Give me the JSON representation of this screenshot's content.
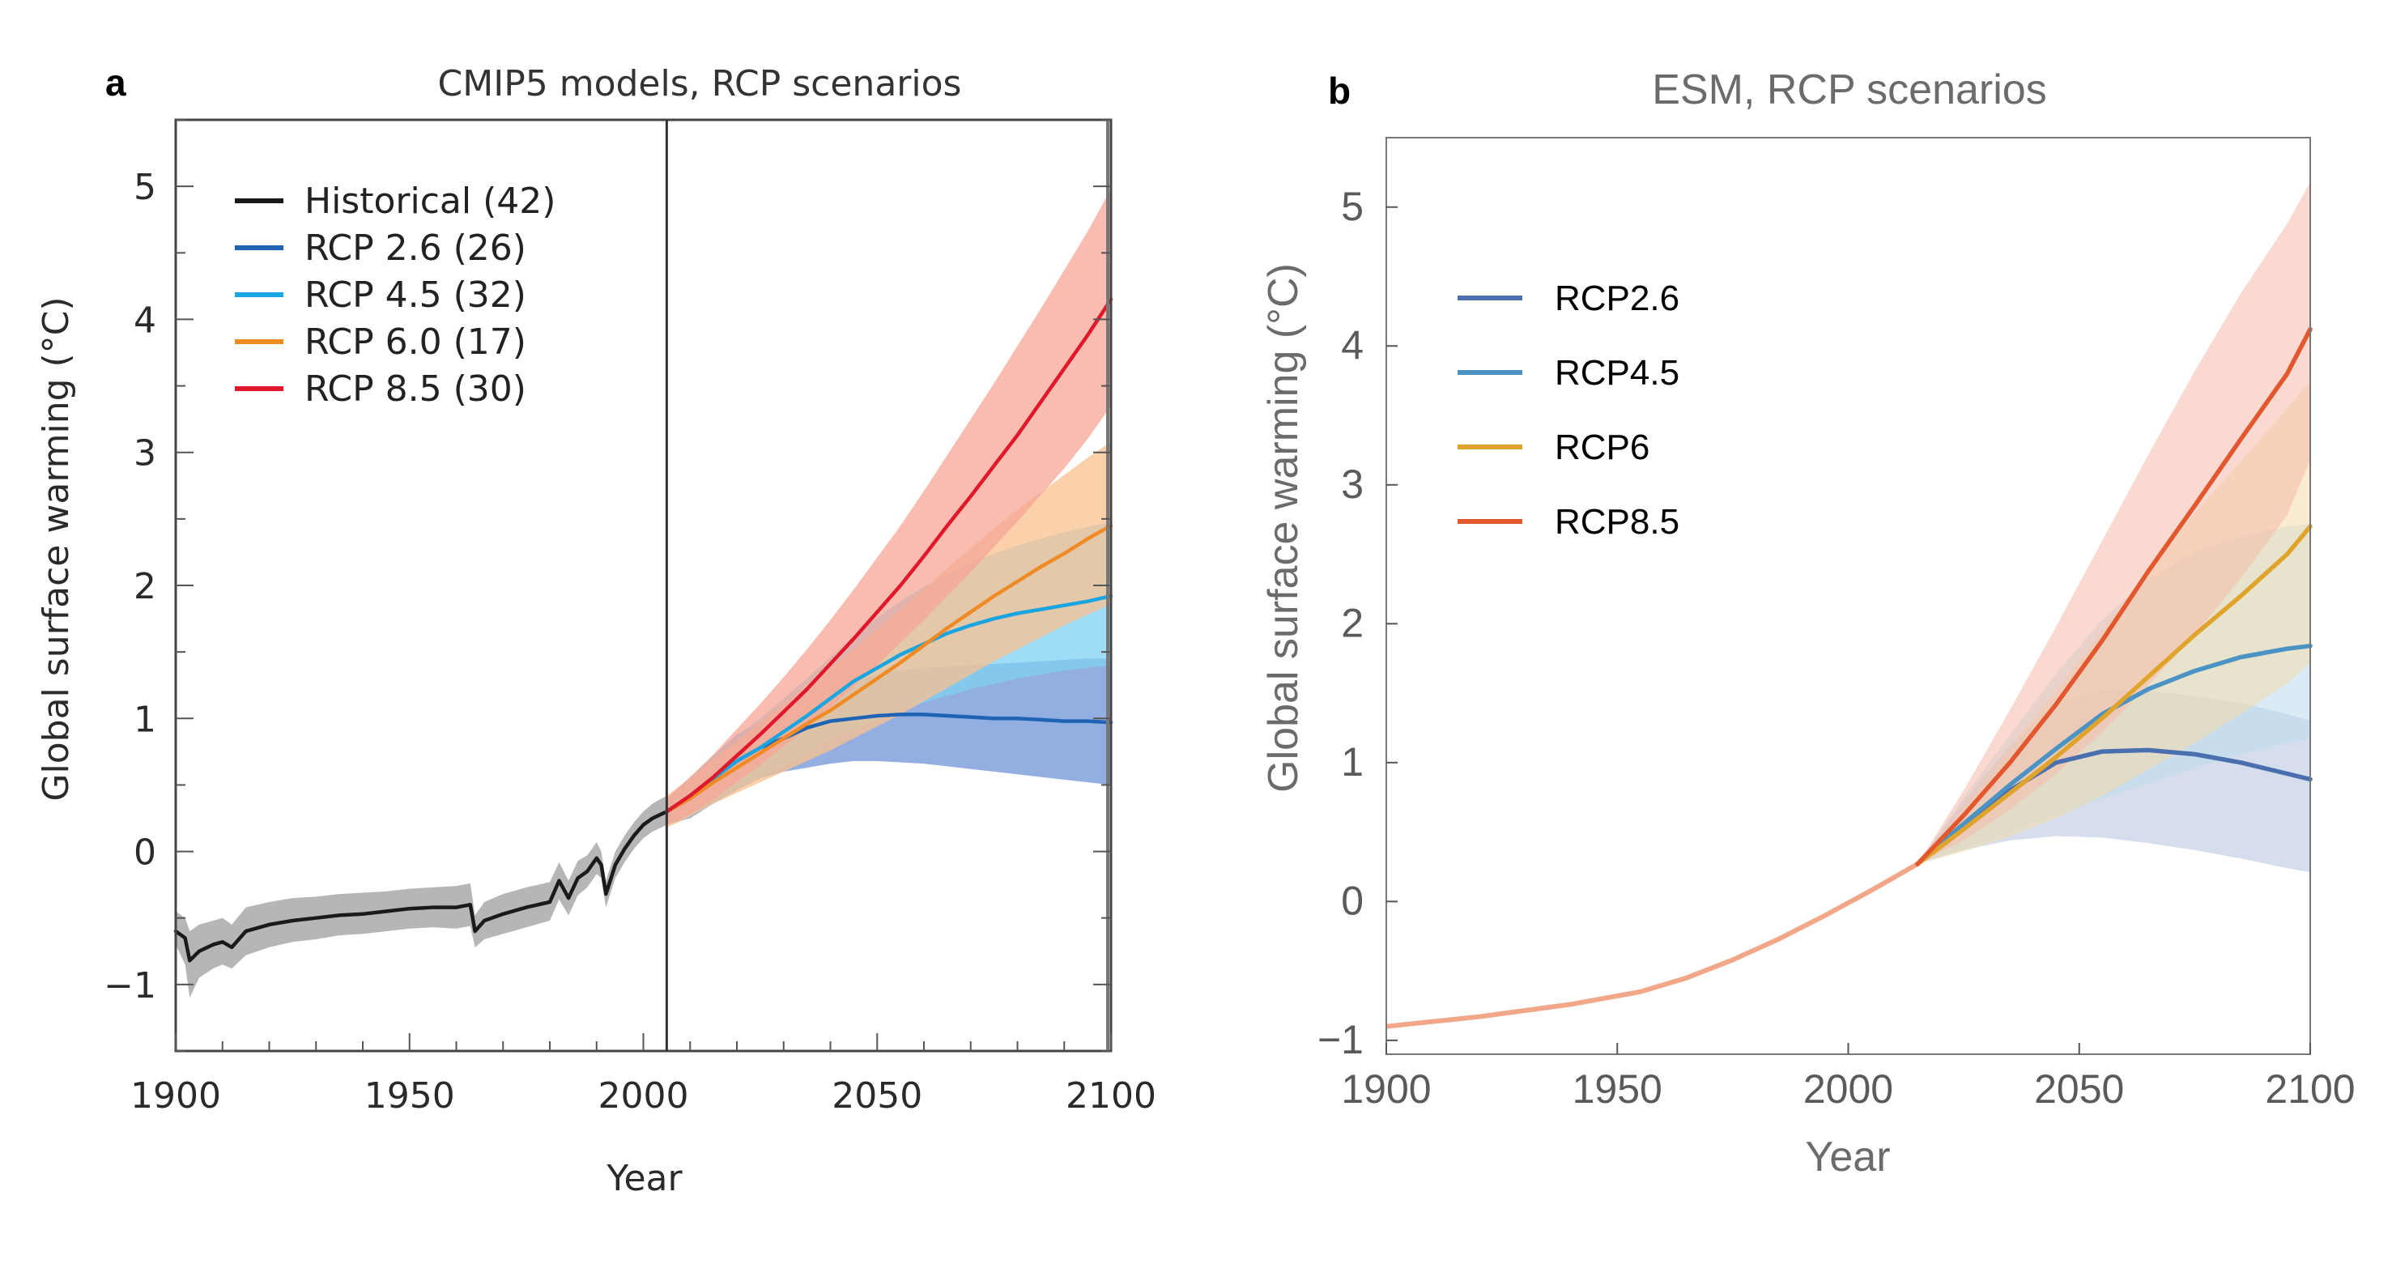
{
  "chart_data": [
    {
      "panel": "a",
      "type": "line",
      "title": "CMIP5 models, RCP scenarios",
      "xlabel": "Year",
      "ylabel": "Global surface warming (°C)",
      "xlim": [
        1900,
        2100
      ],
      "ylim": [
        -1.5,
        5.5
      ],
      "xticks": [
        1900,
        1950,
        2000,
        2050,
        2100
      ],
      "yticks": [
        -1,
        0,
        1,
        2,
        3,
        4,
        5
      ],
      "vertical_line_x": 2005,
      "grid": false,
      "legend_position": "top-left",
      "series": [
        {
          "name": "Historical (42)",
          "color": "#1a1a1a",
          "band_color": "#9e9e9e",
          "x": [
            1900,
            1902,
            1903,
            1905,
            1908,
            1910,
            1912,
            1915,
            1920,
            1925,
            1930,
            1935,
            1940,
            1945,
            1950,
            1955,
            1960,
            1963,
            1964,
            1966,
            1970,
            1975,
            1980,
            1982,
            1984,
            1986,
            1988,
            1990,
            1991,
            1992,
            1994,
            1996,
            1998,
            2000,
            2002,
            2005
          ],
          "y": [
            -0.6,
            -0.65,
            -0.82,
            -0.75,
            -0.7,
            -0.68,
            -0.72,
            -0.6,
            -0.55,
            -0.52,
            -0.5,
            -0.48,
            -0.47,
            -0.45,
            -0.43,
            -0.42,
            -0.42,
            -0.4,
            -0.6,
            -0.52,
            -0.47,
            -0.42,
            -0.38,
            -0.22,
            -0.35,
            -0.2,
            -0.15,
            -0.05,
            -0.1,
            -0.32,
            -0.1,
            0.02,
            0.12,
            0.2,
            0.25,
            0.3
          ],
          "lower": [
            -0.7,
            -0.85,
            -1.1,
            -0.95,
            -0.88,
            -0.85,
            -0.88,
            -0.78,
            -0.72,
            -0.68,
            -0.66,
            -0.63,
            -0.62,
            -0.6,
            -0.58,
            -0.57,
            -0.58,
            -0.56,
            -0.72,
            -0.66,
            -0.62,
            -0.57,
            -0.52,
            -0.36,
            -0.48,
            -0.33,
            -0.27,
            -0.17,
            -0.2,
            -0.42,
            -0.2,
            -0.08,
            0.02,
            0.1,
            0.15,
            0.2
          ],
          "upper": [
            -0.45,
            -0.5,
            -0.6,
            -0.55,
            -0.52,
            -0.5,
            -0.55,
            -0.42,
            -0.38,
            -0.35,
            -0.34,
            -0.32,
            -0.31,
            -0.3,
            -0.28,
            -0.27,
            -0.26,
            -0.24,
            -0.48,
            -0.38,
            -0.32,
            -0.27,
            -0.23,
            -0.08,
            -0.22,
            -0.07,
            -0.03,
            0.07,
            0.0,
            -0.22,
            0.0,
            0.12,
            0.22,
            0.3,
            0.36,
            0.42
          ]
        },
        {
          "name": "RCP 2.6 (26)",
          "color": "#1f63b5",
          "band_color": "#6f93d6",
          "x": [
            2005,
            2010,
            2015,
            2020,
            2025,
            2030,
            2035,
            2040,
            2045,
            2050,
            2055,
            2060,
            2065,
            2070,
            2075,
            2080,
            2085,
            2090,
            2095,
            2100
          ],
          "y": [
            0.3,
            0.4,
            0.55,
            0.68,
            0.78,
            0.85,
            0.93,
            0.98,
            1.0,
            1.02,
            1.03,
            1.03,
            1.02,
            1.01,
            1.0,
            1.0,
            0.99,
            0.98,
            0.98,
            0.97
          ],
          "lower": [
            0.2,
            0.25,
            0.36,
            0.46,
            0.55,
            0.6,
            0.63,
            0.66,
            0.68,
            0.68,
            0.67,
            0.66,
            0.64,
            0.62,
            0.6,
            0.58,
            0.56,
            0.54,
            0.52,
            0.5
          ],
          "upper": [
            0.4,
            0.55,
            0.72,
            0.88,
            0.97,
            1.08,
            1.18,
            1.25,
            1.3,
            1.33,
            1.36,
            1.38,
            1.39,
            1.4,
            1.41,
            1.42,
            1.43,
            1.44,
            1.45,
            1.45
          ]
        },
        {
          "name": "RCP 4.5 (32)",
          "color": "#1aa4e0",
          "band_color": "#7fd0f3",
          "x": [
            2005,
            2010,
            2015,
            2020,
            2025,
            2030,
            2035,
            2040,
            2045,
            2050,
            2055,
            2060,
            2065,
            2070,
            2075,
            2080,
            2085,
            2090,
            2095,
            2100
          ],
          "y": [
            0.3,
            0.42,
            0.55,
            0.68,
            0.78,
            0.9,
            1.02,
            1.15,
            1.28,
            1.38,
            1.48,
            1.56,
            1.64,
            1.7,
            1.75,
            1.79,
            1.82,
            1.85,
            1.88,
            1.92
          ],
          "lower": [
            0.2,
            0.28,
            0.38,
            0.48,
            0.56,
            0.64,
            0.74,
            0.84,
            0.92,
            0.99,
            1.06,
            1.12,
            1.17,
            1.22,
            1.26,
            1.3,
            1.33,
            1.36,
            1.38,
            1.4
          ],
          "upper": [
            0.4,
            0.56,
            0.72,
            0.87,
            1.0,
            1.15,
            1.3,
            1.46,
            1.62,
            1.76,
            1.88,
            1.99,
            2.08,
            2.17,
            2.24,
            2.3,
            2.35,
            2.4,
            2.44,
            2.48
          ]
        },
        {
          "name": "RCP 6.0 (17)",
          "color": "#f08a24",
          "band_color": "#f9c18f",
          "x": [
            2005,
            2010,
            2015,
            2020,
            2025,
            2030,
            2035,
            2040,
            2045,
            2050,
            2055,
            2060,
            2065,
            2070,
            2075,
            2080,
            2085,
            2090,
            2095,
            2100
          ],
          "y": [
            0.3,
            0.4,
            0.52,
            0.63,
            0.74,
            0.85,
            0.96,
            1.06,
            1.18,
            1.3,
            1.42,
            1.55,
            1.68,
            1.8,
            1.92,
            2.03,
            2.14,
            2.24,
            2.35,
            2.45
          ],
          "lower": [
            0.18,
            0.26,
            0.36,
            0.44,
            0.52,
            0.6,
            0.68,
            0.76,
            0.85,
            0.94,
            1.03,
            1.13,
            1.23,
            1.33,
            1.43,
            1.52,
            1.61,
            1.7,
            1.78,
            1.86
          ],
          "upper": [
            0.42,
            0.55,
            0.7,
            0.83,
            0.97,
            1.11,
            1.25,
            1.38,
            1.52,
            1.67,
            1.82,
            1.97,
            2.13,
            2.28,
            2.43,
            2.57,
            2.7,
            2.83,
            2.96,
            3.08
          ]
        },
        {
          "name": "RCP 8.5 (30)",
          "color": "#e0182a",
          "band_color": "#f6a595",
          "x": [
            2005,
            2010,
            2015,
            2020,
            2025,
            2030,
            2035,
            2040,
            2045,
            2050,
            2055,
            2060,
            2065,
            2070,
            2075,
            2080,
            2085,
            2090,
            2095,
            2100
          ],
          "y": [
            0.3,
            0.42,
            0.56,
            0.72,
            0.88,
            1.05,
            1.22,
            1.41,
            1.6,
            1.8,
            2.0,
            2.22,
            2.45,
            2.67,
            2.9,
            3.13,
            3.38,
            3.63,
            3.88,
            4.15
          ],
          "lower": [
            0.2,
            0.28,
            0.39,
            0.52,
            0.65,
            0.79,
            0.93,
            1.08,
            1.24,
            1.4,
            1.57,
            1.74,
            1.92,
            2.1,
            2.29,
            2.48,
            2.68,
            2.88,
            3.1,
            3.35
          ],
          "upper": [
            0.4,
            0.56,
            0.73,
            0.92,
            1.11,
            1.31,
            1.52,
            1.74,
            1.97,
            2.21,
            2.45,
            2.71,
            2.98,
            3.25,
            3.52,
            3.8,
            4.08,
            4.37,
            4.66,
            4.98
          ]
        }
      ]
    },
    {
      "panel": "b",
      "type": "line",
      "title": "ESM, RCP scenarios",
      "xlabel": "Year",
      "ylabel": "Global surface warming (°C)",
      "xlim": [
        1900,
        2100
      ],
      "ylim": [
        -1.1,
        5.5
      ],
      "xticks": [
        1900,
        1950,
        2000,
        2050,
        2100
      ],
      "yticks": [
        -1,
        0,
        1,
        2,
        3,
        4,
        5
      ],
      "grid": false,
      "legend_position": "top-left",
      "history": {
        "color": "#f2a789",
        "x": [
          1900,
          1920,
          1940,
          1955,
          1965,
          1975,
          1985,
          1995,
          2005,
          2015
        ],
        "y": [
          -0.9,
          -0.83,
          -0.74,
          -0.65,
          -0.55,
          -0.42,
          -0.27,
          -0.1,
          0.08,
          0.27
        ]
      },
      "series": [
        {
          "name": "RCP2.6",
          "color": "#4a6fae",
          "band_color": "#b4c2e0",
          "x": [
            2015,
            2025,
            2035,
            2045,
            2055,
            2065,
            2075,
            2085,
            2095,
            2100
          ],
          "y": [
            0.27,
            0.55,
            0.8,
            1.0,
            1.08,
            1.09,
            1.06,
            1.0,
            0.92,
            0.88
          ],
          "lower": [
            0.27,
            0.37,
            0.44,
            0.47,
            0.46,
            0.42,
            0.37,
            0.31,
            0.24,
            0.21
          ],
          "upper": [
            0.27,
            0.72,
            1.12,
            1.42,
            1.52,
            1.52,
            1.48,
            1.43,
            1.35,
            1.3
          ]
        },
        {
          "name": "RCP4.5",
          "color": "#4b93c4",
          "band_color": "#bcdaec",
          "x": [
            2015,
            2025,
            2035,
            2045,
            2055,
            2065,
            2075,
            2085,
            2095,
            2100
          ],
          "y": [
            0.27,
            0.56,
            0.84,
            1.1,
            1.35,
            1.53,
            1.66,
            1.76,
            1.82,
            1.84
          ],
          "lower": [
            0.27,
            0.38,
            0.5,
            0.62,
            0.74,
            0.85,
            0.96,
            1.06,
            1.14,
            1.17
          ],
          "upper": [
            0.27,
            0.75,
            1.2,
            1.64,
            2.03,
            2.32,
            2.52,
            2.63,
            2.7,
            2.72
          ]
        },
        {
          "name": "RCP6",
          "color": "#e0a42c",
          "band_color": "#f4dcaa",
          "x": [
            2015,
            2025,
            2035,
            2045,
            2055,
            2065,
            2075,
            2085,
            2095,
            2100
          ],
          "y": [
            0.27,
            0.52,
            0.78,
            1.04,
            1.32,
            1.62,
            1.92,
            2.2,
            2.5,
            2.7
          ],
          "lower": [
            0.27,
            0.36,
            0.47,
            0.6,
            0.76,
            0.95,
            1.14,
            1.35,
            1.57,
            1.72
          ],
          "upper": [
            0.27,
            0.68,
            1.1,
            1.52,
            1.95,
            2.38,
            2.8,
            3.17,
            3.55,
            3.75
          ]
        },
        {
          "name": "RCP8.5",
          "color": "#e2572e",
          "band_color": "#f5bca9",
          "x": [
            2015,
            2025,
            2035,
            2045,
            2055,
            2065,
            2075,
            2085,
            2095,
            2100
          ],
          "y": [
            0.27,
            0.62,
            1.0,
            1.42,
            1.88,
            2.38,
            2.85,
            3.33,
            3.8,
            4.12
          ],
          "lower": [
            0.27,
            0.44,
            0.66,
            0.92,
            1.22,
            1.56,
            1.92,
            2.33,
            2.78,
            3.18
          ],
          "upper": [
            0.27,
            0.8,
            1.38,
            1.98,
            2.6,
            3.22,
            3.82,
            4.38,
            4.88,
            5.18
          ]
        }
      ]
    }
  ]
}
